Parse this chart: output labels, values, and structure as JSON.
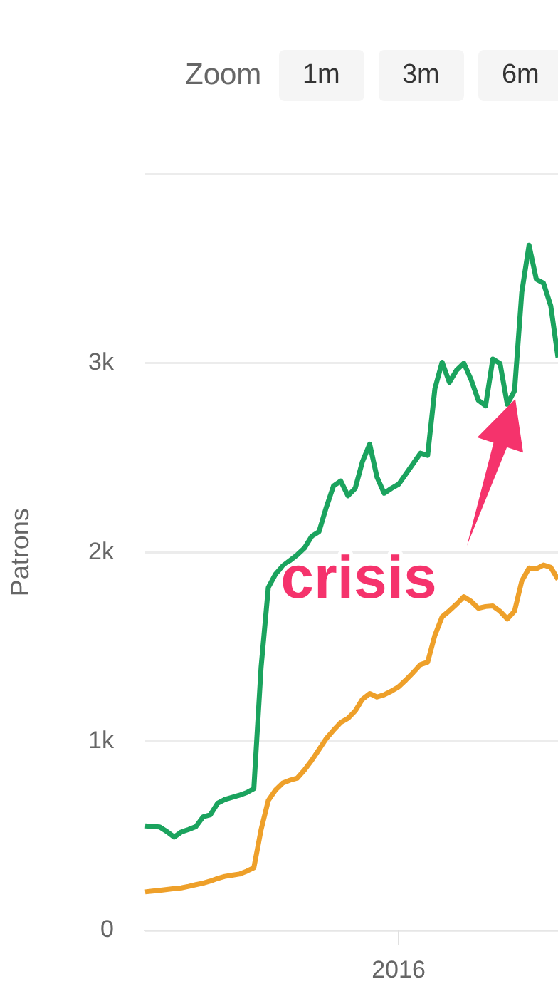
{
  "chart_data": {
    "type": "line",
    "ylabel": "Patrons",
    "ylim": [
      0,
      4000
    ],
    "yticks": [
      0,
      {
        "value": 1000,
        "label": "1k"
      },
      {
        "value": 2000,
        "label": "2k"
      },
      {
        "value": 3000,
        "label": "3k"
      },
      {
        "value": 4000,
        "label": null
      }
    ],
    "grid": "y",
    "legend": false,
    "marker": "none",
    "annotations": [
      "Zoom",
      "1m",
      "3m",
      "6m",
      "crisis",
      "2016"
    ],
    "categories": [
      null,
      null,
      null,
      null,
      null,
      null,
      null,
      null,
      null,
      null,
      null,
      null,
      null,
      null,
      null,
      null,
      null,
      null,
      null,
      null,
      null,
      null,
      null,
      null,
      null,
      null,
      null,
      null,
      null,
      null,
      null,
      null,
      null,
      null,
      null,
      null,
      null,
      null,
      null,
      null,
      null,
      null,
      null,
      null,
      null,
      null,
      null,
      null,
      null,
      null,
      null,
      null,
      null,
      null,
      null,
      null,
      null,
      null
    ],
    "series": [
      {
        "color": "#1ba35e",
        "values": [
          553,
          550,
          547,
          523,
          494,
          521,
          534,
          549,
          601,
          612,
          673,
          693,
          704,
          715,
          729,
          750,
          1390,
          1814,
          1885,
          1928,
          1957,
          1987,
          2023,
          2085,
          2109,
          2237,
          2351,
          2377,
          2299,
          2338,
          2480,
          2572,
          2398,
          2312,
          2338,
          2360,
          2414,
          2469,
          2524,
          2513,
          2865,
          3005,
          2899,
          2963,
          3000,
          2913,
          2804,
          2775,
          3022,
          2998,
          2783,
          2855,
          3375,
          3624,
          3445,
          3423,
          3303,
          3030
        ]
      },
      {
        "color": "#eea02a",
        "values": [
          204,
          208,
          212,
          217,
          221,
          225,
          233,
          242,
          250,
          261,
          275,
          286,
          292,
          298,
          313,
          331,
          533,
          688,
          743,
          780,
          795,
          806,
          849,
          900,
          957,
          1015,
          1059,
          1100,
          1122,
          1161,
          1223,
          1253,
          1235,
          1247,
          1266,
          1289,
          1325,
          1364,
          1406,
          1419,
          1561,
          1659,
          1691,
          1726,
          1765,
          1741,
          1704,
          1713,
          1716,
          1688,
          1647,
          1689,
          1848,
          1917,
          1912,
          1933,
          1920,
          1857
        ]
      }
    ]
  }
}
